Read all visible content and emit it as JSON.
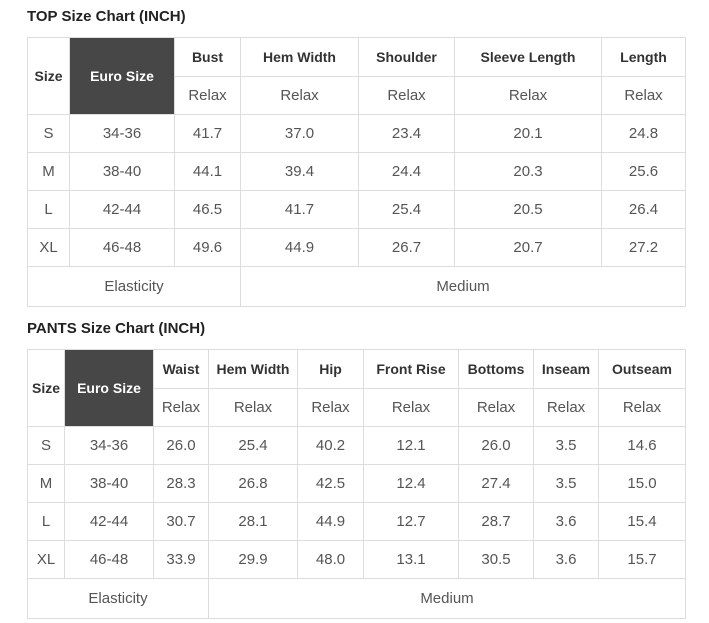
{
  "charts": [
    {
      "title": "TOP Size Chart (INCH)",
      "size_header": "Size",
      "euro_header": "Euro Size",
      "fit_label": "Relax",
      "measures": [
        "Bust",
        "Hem Width",
        "Shoulder",
        "Sleeve Length",
        "Length"
      ],
      "rows": [
        [
          "S",
          "34-36",
          "41.7",
          "37.0",
          "23.4",
          "20.1",
          "24.8"
        ],
        [
          "M",
          "38-40",
          "44.1",
          "39.4",
          "24.4",
          "20.3",
          "25.6"
        ],
        [
          "L",
          "42-44",
          "46.5",
          "41.7",
          "25.4",
          "20.5",
          "26.4"
        ],
        [
          "XL",
          "46-48",
          "49.6",
          "44.9",
          "26.7",
          "20.7",
          "27.2"
        ]
      ],
      "footer_label": "Elasticity",
      "footer_value": "Medium"
    },
    {
      "title": "PANTS Size Chart (INCH)",
      "size_header": "Size",
      "euro_header": "Euro Size",
      "fit_label": "Relax",
      "measures": [
        "Waist",
        "Hem Width",
        "Hip",
        "Front Rise",
        "Bottoms",
        "Inseam",
        "Outseam"
      ],
      "rows": [
        [
          "S",
          "34-36",
          "26.0",
          "25.4",
          "40.2",
          "12.1",
          "26.0",
          "3.5",
          "14.6"
        ],
        [
          "M",
          "38-40",
          "28.3",
          "26.8",
          "42.5",
          "12.4",
          "27.4",
          "3.5",
          "15.0"
        ],
        [
          "L",
          "42-44",
          "30.7",
          "28.1",
          "44.9",
          "12.7",
          "28.7",
          "3.6",
          "15.4"
        ],
        [
          "XL",
          "46-48",
          "33.9",
          "29.9",
          "48.0",
          "13.1",
          "30.5",
          "3.6",
          "15.7"
        ]
      ],
      "footer_label": "Elasticity",
      "footer_value": "Medium"
    }
  ],
  "colors": {
    "euro_header_bg": "#474747",
    "euro_header_text": "#ffffff",
    "border": "#dddddd",
    "heading_text": "#222222",
    "header_text": "#333333",
    "body_text": "#555555"
  }
}
